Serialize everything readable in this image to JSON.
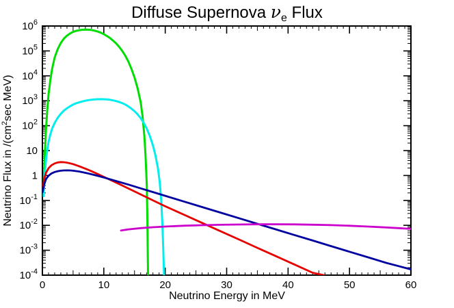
{
  "chart_data": {
    "type": "line",
    "title_parts": {
      "pre": "Diffuse Supernova ",
      "symbol": "ν",
      "subscript": "e",
      "post": " Flux"
    },
    "title_text": "Diffuse Supernova νe Flux",
    "xlabel": "Neutrino Energy in MeV",
    "ylabel_parts": {
      "pre": "Neutrino Flux in /(cm",
      "sup": "2",
      "post": "sec MeV)"
    },
    "ylabel_text": "Neutrino Flux in /(cm^2 sec MeV)",
    "xlim": [
      0,
      60
    ],
    "ylog_exp_range": [
      -4,
      6
    ],
    "grid": false,
    "legend": "none",
    "axis_color": "#000000",
    "x_minor_step": 1,
    "x_ticks": [
      {
        "value": 0,
        "label": "0"
      },
      {
        "value": 10,
        "label": "10"
      },
      {
        "value": 20,
        "label": "20"
      },
      {
        "value": 30,
        "label": "30"
      },
      {
        "value": 40,
        "label": "40"
      },
      {
        "value": 50,
        "label": "50"
      },
      {
        "value": 60,
        "label": "60"
      }
    ],
    "y_ticks": [
      {
        "exp": 6,
        "label": "10^6"
      },
      {
        "exp": 5,
        "label": "10^5"
      },
      {
        "exp": 4,
        "label": "10^4"
      },
      {
        "exp": 3,
        "label": "10^3"
      },
      {
        "exp": 2,
        "label": "10^2"
      },
      {
        "exp": 1,
        "label": "10"
      },
      {
        "exp": 0,
        "label": "1"
      },
      {
        "exp": -1,
        "label": "10^-1"
      },
      {
        "exp": -2,
        "label": "10^-2"
      },
      {
        "exp": -3,
        "label": "10^-3"
      },
      {
        "exp": -4,
        "label": "10^-4"
      }
    ],
    "series": [
      {
        "name": "green-burst-spectrum",
        "color": "#00dd00",
        "width": 3,
        "points": [
          [
            0.2,
            0.4
          ],
          [
            0.4,
            8
          ],
          [
            0.6,
            80
          ],
          [
            0.8,
            450
          ],
          [
            1.0,
            1800
          ],
          [
            1.3,
            7000
          ],
          [
            1.6,
            20000
          ],
          [
            2.0,
            55000
          ],
          [
            2.5,
            120000
          ],
          [
            3.0,
            210000
          ],
          [
            3.5,
            310000
          ],
          [
            4.0,
            410000
          ],
          [
            4.5,
            500000
          ],
          [
            5.0,
            580000
          ],
          [
            5.5,
            640000
          ],
          [
            6.0,
            680000
          ],
          [
            6.5,
            705000
          ],
          [
            7.0,
            715000
          ],
          [
            7.5,
            710000
          ],
          [
            8.0,
            690000
          ],
          [
            8.5,
            650000
          ],
          [
            9.0,
            600000
          ],
          [
            9.5,
            540000
          ],
          [
            10,
            470000
          ],
          [
            10.5,
            400000
          ],
          [
            11,
            330000
          ],
          [
            11.5,
            260000
          ],
          [
            12,
            200000
          ],
          [
            12.5,
            145000
          ],
          [
            13,
            100000
          ],
          [
            13.5,
            64000
          ],
          [
            14,
            37000
          ],
          [
            14.5,
            19000
          ],
          [
            15,
            8500
          ],
          [
            15.5,
            3200
          ],
          [
            16,
            900
          ],
          [
            16.3,
            250
          ],
          [
            16.6,
            40
          ],
          [
            16.8,
            6
          ],
          [
            17.0,
            0.4
          ],
          [
            17.1,
            0.015
          ],
          [
            17.2,
            0.0001
          ]
        ]
      },
      {
        "name": "cyan-burst-spectrum",
        "color": "#00eeee",
        "width": 3,
        "points": [
          [
            0.2,
            0.15
          ],
          [
            0.4,
            1.2
          ],
          [
            0.6,
            4.5
          ],
          [
            0.8,
            11
          ],
          [
            1.0,
            22
          ],
          [
            1.3,
            45
          ],
          [
            1.6,
            78
          ],
          [
            2.0,
            130
          ],
          [
            2.5,
            210
          ],
          [
            3.0,
            300
          ],
          [
            3.5,
            400
          ],
          [
            4.0,
            500
          ],
          [
            4.5,
            600
          ],
          [
            5.0,
            700
          ],
          [
            5.5,
            790
          ],
          [
            6.0,
            870
          ],
          [
            6.5,
            940
          ],
          [
            7.0,
            1000
          ],
          [
            7.5,
            1060
          ],
          [
            8.0,
            1100
          ],
          [
            8.5,
            1130
          ],
          [
            9.0,
            1150
          ],
          [
            9.5,
            1155
          ],
          [
            10,
            1150
          ],
          [
            10.5,
            1130
          ],
          [
            11,
            1090
          ],
          [
            11.5,
            1040
          ],
          [
            12,
            970
          ],
          [
            12.5,
            890
          ],
          [
            13,
            800
          ],
          [
            13.5,
            700
          ],
          [
            14,
            590
          ],
          [
            14.5,
            480
          ],
          [
            15,
            380
          ],
          [
            15.5,
            285
          ],
          [
            16,
            200
          ],
          [
            16.5,
            130
          ],
          [
            17,
            75
          ],
          [
            17.5,
            38
          ],
          [
            18,
            16
          ],
          [
            18.4,
            6.5
          ],
          [
            18.8,
            2.0
          ],
          [
            19.1,
            0.55
          ],
          [
            19.35,
            0.1
          ],
          [
            19.55,
            0.01
          ],
          [
            19.7,
            0.0007
          ],
          [
            19.8,
            0.0001
          ]
        ]
      },
      {
        "name": "red-tail-spectrum",
        "color": "#e60000",
        "width": 2.8,
        "points": [
          [
            0.05,
            0.3
          ],
          [
            0.3,
            0.75
          ],
          [
            0.6,
            1.3
          ],
          [
            1.0,
            1.95
          ],
          [
            1.5,
            2.6
          ],
          [
            2.0,
            3.05
          ],
          [
            2.5,
            3.35
          ],
          [
            3.0,
            3.45
          ],
          [
            3.5,
            3.42
          ],
          [
            4.0,
            3.28
          ],
          [
            4.5,
            3.08
          ],
          [
            5.0,
            2.85
          ],
          [
            6.0,
            2.35
          ],
          [
            7.0,
            1.88
          ],
          [
            8.0,
            1.48
          ],
          [
            9.0,
            1.15
          ],
          [
            10,
            0.88
          ],
          [
            12,
            0.52
          ],
          [
            14,
            0.3
          ],
          [
            16,
            0.175
          ],
          [
            18,
            0.1
          ],
          [
            20,
            0.058
          ],
          [
            23,
            0.027
          ],
          [
            26,
            0.0125
          ],
          [
            29,
            0.0058
          ],
          [
            32,
            0.0027
          ],
          [
            35,
            0.00125
          ],
          [
            38,
            0.00058
          ],
          [
            41,
            0.00027
          ],
          [
            44,
            0.000125
          ],
          [
            45.8,
            0.0001
          ]
        ]
      },
      {
        "name": "navy-tail-spectrum",
        "color": "#0000a0",
        "width": 2.8,
        "points": [
          [
            0.05,
            0.22
          ],
          [
            0.3,
            0.45
          ],
          [
            0.6,
            0.72
          ],
          [
            1.0,
            0.98
          ],
          [
            1.5,
            1.22
          ],
          [
            2.0,
            1.38
          ],
          [
            2.5,
            1.49
          ],
          [
            3.0,
            1.56
          ],
          [
            3.5,
            1.6
          ],
          [
            4.0,
            1.61
          ],
          [
            4.5,
            1.6
          ],
          [
            5.0,
            1.56
          ],
          [
            6.0,
            1.44
          ],
          [
            7.0,
            1.28
          ],
          [
            8.0,
            1.12
          ],
          [
            9.0,
            0.97
          ],
          [
            10,
            0.83
          ],
          [
            12,
            0.6
          ],
          [
            14,
            0.43
          ],
          [
            16,
            0.305
          ],
          [
            18,
            0.216
          ],
          [
            20,
            0.153
          ],
          [
            23,
            0.091
          ],
          [
            26,
            0.054
          ],
          [
            29,
            0.0325
          ],
          [
            32,
            0.0193
          ],
          [
            35,
            0.0115
          ],
          [
            38,
            0.0069
          ],
          [
            41,
            0.0041
          ],
          [
            44,
            0.00245
          ],
          [
            47,
            0.00146
          ],
          [
            50,
            0.00087
          ],
          [
            53,
            0.00052
          ],
          [
            56,
            0.00031
          ],
          [
            58,
            0.00023
          ],
          [
            60,
            0.00017
          ]
        ]
      },
      {
        "name": "magenta-flat-spectrum",
        "color": "#cc00cc",
        "width": 2.8,
        "points": [
          [
            12.8,
            0.0062
          ],
          [
            14,
            0.0069
          ],
          [
            16,
            0.0077
          ],
          [
            18,
            0.0084
          ],
          [
            20,
            0.0089
          ],
          [
            23,
            0.0096
          ],
          [
            26,
            0.0101
          ],
          [
            29,
            0.0105
          ],
          [
            32,
            0.0108
          ],
          [
            35,
            0.011
          ],
          [
            38,
            0.011
          ],
          [
            41,
            0.0109
          ],
          [
            44,
            0.0106
          ],
          [
            47,
            0.0102
          ],
          [
            50,
            0.0096
          ],
          [
            53,
            0.0089
          ],
          [
            56,
            0.0082
          ],
          [
            58,
            0.0077
          ],
          [
            60,
            0.0072
          ]
        ]
      }
    ]
  }
}
